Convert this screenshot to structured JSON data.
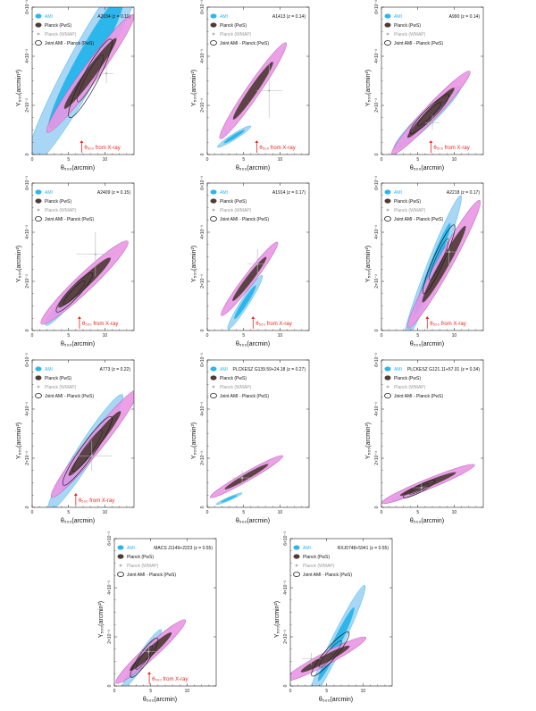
{
  "colors": {
    "ami": "#2cb7ec",
    "ami_light": "#a9d6f4",
    "planck": "#4f3b37",
    "planck_light": "#ea96e6",
    "wmap": "#b5b5b5",
    "joint": "#1c1c1c",
    "xray": "#e8271f"
  },
  "legend": {
    "ami": "AMI",
    "planck": "Planck (PwS)",
    "wmap": "Planck (WMAP)",
    "joint": "Joint AMI - Planck (PwS)"
  },
  "axes": {
    "xlabel": "θ₅₀₀(arcmin)",
    "ylabel": "Y₅₀₀(arcmin²)",
    "xticks": [
      "0",
      "5",
      "10"
    ],
    "yticks": [
      "0",
      "2×10⁻³",
      "4×10⁻³",
      "6×10⁻³"
    ]
  },
  "xray_label": "θ₅₀₀ from X-ray",
  "chart_data": [
    {
      "type": "contour",
      "title": "A2034 (z = 0.11)",
      "xlim": [
        0,
        14
      ],
      "ylim": [
        0,
        0.006
      ],
      "xray_theta": 6.8,
      "ami": {
        "cx": 7.5,
        "cy": 0.0038,
        "sx": 4.2,
        "sy": 0.0022,
        "rho": 0.95
      },
      "planck": {
        "cx": 8.0,
        "cy": 0.0033,
        "sx": 3.0,
        "sy": 0.0012,
        "rho": 0.97
      },
      "joint": {
        "cx": 8.0,
        "cy": 0.0031,
        "sx": 1.5,
        "sy": 0.0008,
        "rho": 0.92
      },
      "wmap_point": {
        "x": 10.2,
        "y": 0.0033,
        "ex": 1.0,
        "ey": 0.0004
      }
    },
    {
      "type": "contour",
      "title": "A1413 (z = 0.14)",
      "xlim": [
        0,
        14
      ],
      "ylim": [
        0,
        0.006
      ],
      "xray_theta": 6.8,
      "ami": {
        "cx": 3.7,
        "cy": 0.00073,
        "sx": 1.15,
        "sy": 0.00022,
        "rho": 0.95
      },
      "planck": {
        "cx": 6.3,
        "cy": 0.0026,
        "sx": 2.3,
        "sy": 0.00098,
        "rho": 0.97
      },
      "joint": null,
      "wmap_point": {
        "x": 8.5,
        "y": 0.0026,
        "ex": 1.8,
        "ey": 0.0011
      }
    },
    {
      "type": "contour",
      "title": "A990 (z = 0.14)",
      "xlim": [
        0,
        14
      ],
      "ylim": [
        0,
        0.006
      ],
      "xray_theta": 6.8,
      "ami": {
        "cx": 6.3,
        "cy": 0.0015,
        "sx": 2.3,
        "sy": 0.00065,
        "rho": 0.95
      },
      "planck": {
        "cx": 6.8,
        "cy": 0.0017,
        "sx": 2.7,
        "sy": 0.00085,
        "rho": 0.97
      },
      "joint": {
        "cx": 6.6,
        "cy": 0.00165,
        "sx": 1.35,
        "sy": 0.0004,
        "rho": 0.93
      },
      "wmap_point": {
        "x": 7.0,
        "y": 0.0013,
        "ex": 1.0,
        "ey": 0.0003
      }
    },
    {
      "type": "contour",
      "title": "A2409 (z = 0.15)",
      "xlim": [
        0,
        14
      ],
      "ylim": [
        0,
        0.006
      ],
      "xray_theta": 6.5,
      "ami": {
        "cx": 5.0,
        "cy": 0.0013,
        "sx": 1.6,
        "sy": 0.00055,
        "rho": 0.95
      },
      "planck": {
        "cx": 7.2,
        "cy": 0.00195,
        "sx": 3.0,
        "sy": 0.00085,
        "rho": 0.96
      },
      "joint": {
        "cx": 5.8,
        "cy": 0.00155,
        "sx": 1.25,
        "sy": 0.0004,
        "rho": 0.92
      },
      "wmap_point": {
        "x": 8.7,
        "y": 0.0031,
        "ex": 2.6,
        "ey": 0.0009
      }
    },
    {
      "type": "contour",
      "title": "A1914 (z = 0.17)",
      "xlim": [
        0,
        14
      ],
      "ylim": [
        0,
        0.006
      ],
      "xray_theta": 6.3,
      "ami": {
        "cx": 5.2,
        "cy": 0.00115,
        "sx": 1.2,
        "sy": 0.00055,
        "rho": 0.96
      },
      "planck": {
        "cx": 5.8,
        "cy": 0.0021,
        "sx": 1.95,
        "sy": 0.00075,
        "rho": 0.97
      },
      "joint": null,
      "wmap_point": {
        "x": 6.9,
        "y": 0.0027,
        "ex": 1.4,
        "ey": 0.0006
      }
    },
    {
      "type": "contour",
      "title": "A2218 (z = 0.17)",
      "xlim": [
        0,
        14
      ],
      "ylim": [
        0,
        0.006
      ],
      "xray_theta": 6.3,
      "ami": {
        "cx": 7.0,
        "cy": 0.0025,
        "sx": 2.0,
        "sy": 0.0015,
        "rho": 0.97
      },
      "planck": {
        "cx": 8.6,
        "cy": 0.0027,
        "sx": 2.5,
        "sy": 0.0013,
        "rho": 0.97
      },
      "joint": {
        "cx": 7.9,
        "cy": 0.0029,
        "sx": 1.1,
        "sy": 0.0007,
        "rho": 0.93
      },
      "wmap_point": {
        "x": 9.3,
        "y": 0.0032,
        "ex": 1.0,
        "ey": 0.0006
      }
    },
    {
      "type": "contour",
      "title": "A773 (z = 0.22)",
      "xlim": [
        0,
        14
      ],
      "ylim": [
        0,
        0.006
      ],
      "xray_theta": 6.0,
      "ami": {
        "cx": 7.3,
        "cy": 0.0022,
        "sx": 2.6,
        "sy": 0.0012,
        "rho": 0.96
      },
      "planck": {
        "cx": 8.6,
        "cy": 0.0026,
        "sx": 3.0,
        "sy": 0.0011,
        "rho": 0.97
      },
      "joint": {
        "cx": 7.6,
        "cy": 0.0023,
        "sx": 1.7,
        "sy": 0.0007,
        "rho": 0.94
      },
      "wmap_point": {
        "x": 8.2,
        "y": 0.0021,
        "ex": 2.8,
        "ey": 0.0006
      }
    },
    {
      "type": "contour",
      "title": "PLCKESZ G139.59+24.18 (z = 0.27)",
      "xlim": [
        0,
        14
      ],
      "ylim": [
        0,
        0.006
      ],
      "xray_theta": null,
      "ami": {
        "cx": 3.0,
        "cy": 0.00035,
        "sx": 0.9,
        "sy": 0.00012,
        "rho": 0.95
      },
      "planck": {
        "cx": 5.4,
        "cy": 0.00125,
        "sx": 2.5,
        "sy": 0.00043,
        "rho": 0.97
      },
      "joint": null,
      "wmap_point": {
        "x": 4.8,
        "y": 0.0012,
        "ex": 1.4,
        "ey": 0.0003
      }
    },
    {
      "type": "contour",
      "title": "PLCKESZ G121.11+57.01 (z = 0.34)",
      "xlim": [
        0,
        14
      ],
      "ylim": [
        0,
        0.006
      ],
      "xray_theta": null,
      "ami": {
        "cx": 4.7,
        "cy": 0.0007,
        "sx": 1.6,
        "sy": 0.00022,
        "rho": 0.95
      },
      "planck": {
        "cx": 6.4,
        "cy": 0.00095,
        "sx": 3.2,
        "sy": 0.0004,
        "rho": 0.96
      },
      "joint": {
        "cx": 5.2,
        "cy": 0.00075,
        "sx": 1.1,
        "sy": 0.00018,
        "rho": 0.9
      },
      "wmap_point": {
        "x": 5.5,
        "y": 0.0008,
        "ex": 1.4,
        "ey": 0.0002
      }
    },
    {
      "type": "contour",
      "title": "MACS J1149+2223 (z = 0.55)",
      "xlim": [
        0,
        14
      ],
      "ylim": [
        0,
        0.006
      ],
      "xray_theta": 4.8,
      "ami": {
        "cx": 3.8,
        "cy": 0.0011,
        "sx": 1.35,
        "sy": 0.0006,
        "rho": 0.95
      },
      "planck": {
        "cx": 5.0,
        "cy": 0.0014,
        "sx": 2.4,
        "sy": 0.00065,
        "rho": 0.96
      },
      "joint": {
        "cx": 4.1,
        "cy": 0.00115,
        "sx": 0.95,
        "sy": 0.0004,
        "rho": 0.9
      },
      "wmap_point": {
        "x": 4.7,
        "y": 0.0014,
        "ex": 1.0,
        "ey": 0.0003
      }
    },
    {
      "type": "contour",
      "title": "RXJ0748+5941 (z = 0.55)",
      "xlim": [
        0,
        14
      ],
      "ylim": [
        0,
        0.006
      ],
      "xray_theta": null,
      "ami": {
        "cx": 6.3,
        "cy": 0.0017,
        "sx": 2.0,
        "sy": 0.0012,
        "rho": 0.97
      },
      "planck": {
        "cx": 4.8,
        "cy": 0.0011,
        "sx": 2.8,
        "sy": 0.00045,
        "rho": 0.95
      },
      "joint": {
        "cx": 5.5,
        "cy": 0.0013,
        "sx": 1.3,
        "sy": 0.00045,
        "rho": 0.92
      },
      "wmap_point": {
        "x": 2.9,
        "y": 0.0011,
        "ex": 1.3,
        "ey": 0.00025
      }
    }
  ]
}
